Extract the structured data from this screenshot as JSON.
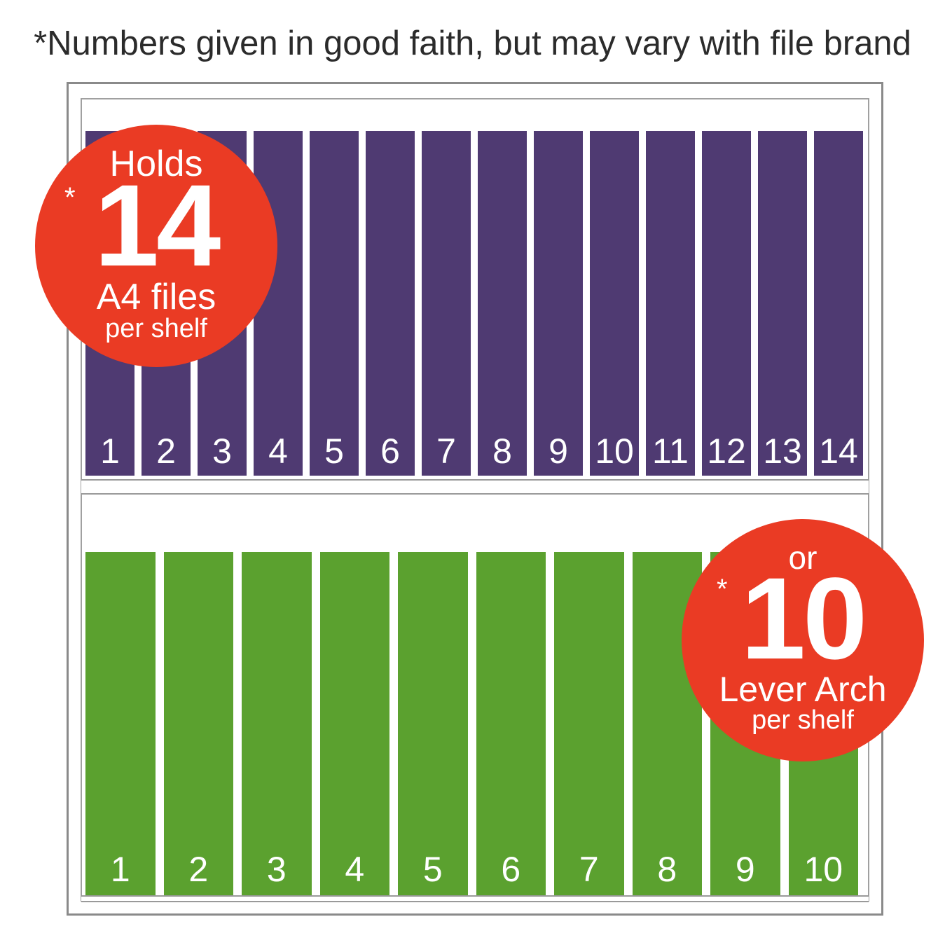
{
  "disclaimer": "*Numbers given in good faith, but may vary with file brand",
  "shelves": {
    "top": {
      "file_color": "#4f3a72",
      "labels": [
        "1",
        "2",
        "3",
        "4",
        "5",
        "6",
        "7",
        "8",
        "9",
        "10",
        "11",
        "12",
        "13",
        "14"
      ]
    },
    "bottom": {
      "file_color": "#5ba12f",
      "labels": [
        "1",
        "2",
        "3",
        "4",
        "5",
        "6",
        "7",
        "8",
        "9",
        "10"
      ]
    }
  },
  "badges": {
    "a4": {
      "color": "#ea3b24",
      "line1": "Holds",
      "star": "*",
      "count": "14",
      "line3": "A4 files",
      "line4": "per shelf"
    },
    "lever": {
      "color": "#ea3b24",
      "line1": "or",
      "star": "*",
      "count": "10",
      "line3": "Lever Arch",
      "line4": "per shelf"
    }
  }
}
